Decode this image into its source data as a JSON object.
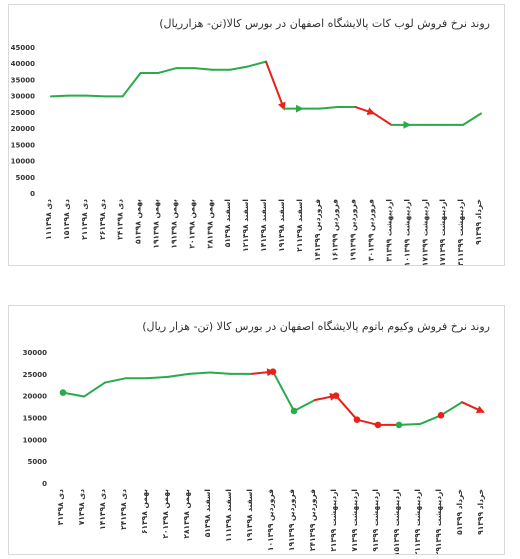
{
  "chart_data": [
    {
      "type": "line",
      "title": "روند نرخ فروش لوب کات پالایشگاه اصفهان در بورس کالا(تن- هزارریال)",
      "ylim": [
        0,
        45000
      ],
      "yticks": [
        "0",
        "5000",
        "10000",
        "15000",
        "20000",
        "25000",
        "30000",
        "35000",
        "40000",
        "45000"
      ],
      "categories": [
        "۱۱دی ۱۳۹۸",
        "۱۵دی ۱۳۹۸",
        "۲۱دی ۱۳۹۸",
        "۲۶دی ۱۳۹۸",
        "۲۴دی ۱۳۹۸",
        "۵بهمن ۱۳۹۸",
        "۱۹بهمن ۱۳۹۸",
        "۱۹بهمن ۱۳۹۸",
        "۲۰بهمن ۱۳۹۸",
        "۲۸بهمن ۱۳۹۸",
        "۵اسفند ۱۳۹۸",
        "۱۲اسفند ۱۳۹۸",
        "۱۴اسفند ۱۳۹۸",
        "۱۹اسفند ۱۳۹۸",
        "۲۱اسفند ۱۳۹۸",
        "۱۴فروردین ۱۳۹۹",
        "۱۶فروردین ۱۳۹۹",
        "۱۹فروردین ۱۳۹۹",
        "۳۰فروردین ۱۳۹۹",
        "۳اردیبهشت ۱۳۹۹",
        "۱۰اردیبهشت ۱۳۹۹",
        "۱۷اردیبهشت ۱۳۹۹",
        "۱۷اردیبهشت ۱۳۹۹",
        "۳۱اردیبهشت ۱۳۹۹",
        "۹خرداد ۱۳۹۹"
      ],
      "values": [
        29800,
        30000,
        30000,
        29800,
        29800,
        37000,
        37000,
        38500,
        38500,
        38000,
        38000,
        39000,
        40500,
        26000,
        26000,
        26000,
        26500,
        26500,
        24600,
        21000,
        21000,
        21000,
        21000,
        21000,
        24500
      ],
      "segment_colors": [
        "#2aaa4a",
        "#2aaa4a",
        "#2aaa4a",
        "#2aaa4a",
        "#2aaa4a",
        "#2aaa4a",
        "#2aaa4a",
        "#2aaa4a",
        "#2aaa4a",
        "#2aaa4a",
        "#2aaa4a",
        "#2aaa4a",
        "#e8221a",
        "#2aaa4a",
        "#2aaa4a",
        "#2aaa4a",
        "#2aaa4a",
        "#e8221a",
        "#e8221a",
        "#2aaa4a",
        "#2aaa4a",
        "#2aaa4a",
        "#2aaa4a",
        "#2aaa4a"
      ],
      "arrow_segments": [
        12,
        13,
        17,
        19,
        24
      ],
      "grid": false,
      "green": "#2aaa4a",
      "red": "#e8221a"
    },
    {
      "type": "line",
      "title": "روند نرخ فروش وکیوم باتوم پالایشگاه اصفهان در بورس کالا (تن- هزار ریال)",
      "ylim": [
        0,
        30000
      ],
      "yticks": [
        "0",
        "5000",
        "10000",
        "15000",
        "20000",
        "25000",
        "30000"
      ],
      "categories": [
        "۳دی ۱۳۹۸",
        "۷دی ۱۳۹۸",
        "۱۴دی ۱۳۹۸",
        "۲۴دی ۱۳۹۸",
        "۶بهمن ۱۳۹۸",
        "۲۰بهمن ۱۳۹۸",
        "۲۸بهمن ۱۳۹۸",
        "۵اسفند ۱۳۹۸",
        "۱۱اسفند ۱۳۹۸",
        "۱۹اسفند ۱۳۹۸",
        "۱۰فروردین ۱۳۹۹",
        "۱۹فروردین ۱۳۹۹",
        "۲۴فروردین ۱۳۹۹",
        "۲اردیبهشت ۱۳۹۹",
        "۷اردیبهشت ۱۳۹۹",
        "۹اردیبهشت ۱۳۹۹",
        "۱۵اردیبهشت ۱۳۹۹",
        "۲۱اردیبهشت ۱۳۹۹",
        "۲۹اردیبهشت ۱۳۹۹",
        "۵خرداد ۱۳۹۹",
        "۹خرداد ۱۳۹۹"
      ],
      "values": [
        20700,
        19800,
        23000,
        24000,
        24000,
        24300,
        25000,
        25300,
        25000,
        25000,
        25500,
        16500,
        19000,
        20000,
        14500,
        13300,
        13300,
        13500,
        15500,
        18500,
        16300
      ],
      "segment_colors": [
        "#2aaa4a",
        "#2aaa4a",
        "#2aaa4a",
        "#2aaa4a",
        "#2aaa4a",
        "#2aaa4a",
        "#2aaa4a",
        "#2aaa4a",
        "#2aaa4a",
        "#e8221a",
        "#2aaa4a",
        "#2aaa4a",
        "#e8221a",
        "#e8221a",
        "#e8221a",
        "#e8221a",
        "#2aaa4a",
        "#2aaa4a",
        "#2aaa4a",
        "#e8221a"
      ],
      "markers": [
        {
          "index": 0,
          "color": "#2aaa4a"
        },
        {
          "index": 10,
          "color": "#e8221a"
        },
        {
          "index": 11,
          "color": "#2aaa4a"
        },
        {
          "index": 13,
          "color": "#e8221a"
        },
        {
          "index": 14,
          "color": "#e8221a"
        },
        {
          "index": 15,
          "color": "#e8221a"
        },
        {
          "index": 16,
          "color": "#2aaa4a"
        },
        {
          "index": 18,
          "color": "#e8221a"
        }
      ],
      "arrow_segments": [
        9,
        12,
        19
      ],
      "grid": false,
      "green": "#2aaa4a",
      "red": "#e8221a"
    }
  ]
}
